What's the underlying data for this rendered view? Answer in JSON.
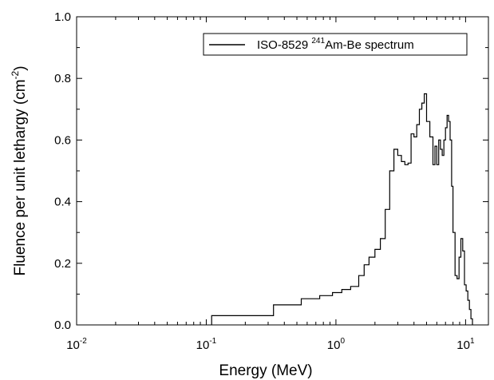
{
  "chart_data": {
    "type": "line",
    "xscale": "log",
    "xlim": [
      0.01,
      15
    ],
    "ylim": [
      0.0,
      1.0
    ],
    "grid": false,
    "legend_position": "top-right",
    "xlabel": "Energy (MeV)",
    "ylabel": "Fluence per unit lethargy (cm",
    "ylabel_superscript": "-2",
    "ylabel_suffix": ")",
    "xticks": [
      {
        "value": 0.01,
        "base": "10",
        "exp": "-2"
      },
      {
        "value": 0.1,
        "base": "10",
        "exp": "-1"
      },
      {
        "value": 1,
        "base": "10",
        "exp": "0"
      },
      {
        "value": 10,
        "base": "10",
        "exp": "1"
      }
    ],
    "yticks": [
      "0.0",
      "0.2",
      "0.4",
      "0.6",
      "0.8",
      "1.0"
    ],
    "legend": {
      "prefix": "ISO-8529 ",
      "superscript": "241",
      "suffix": "Am-Be spectrum"
    },
    "series": [
      {
        "name": "ISO-8529 241Am-Be spectrum",
        "color": "#000000",
        "step": true,
        "x": [
          0.11,
          0.33,
          0.54,
          0.75,
          0.94,
          1.11,
          1.3,
          1.5,
          1.65,
          1.8,
          2.0,
          2.2,
          2.4,
          2.6,
          2.8,
          3.0,
          3.2,
          3.4,
          3.6,
          3.8,
          4.0,
          4.2,
          4.4,
          4.6,
          4.8,
          5.0,
          5.3,
          5.6,
          5.8,
          6.0,
          6.2,
          6.4,
          6.6,
          6.8,
          7.0,
          7.2,
          7.4,
          7.6,
          7.8,
          8.0,
          8.3,
          8.6,
          8.9,
          9.2,
          9.5,
          9.8,
          10.1,
          10.4,
          10.7,
          11.0,
          11.3
        ],
        "y": [
          0.03,
          0.065,
          0.085,
          0.095,
          0.105,
          0.115,
          0.125,
          0.16,
          0.195,
          0.22,
          0.245,
          0.28,
          0.375,
          0.5,
          0.57,
          0.55,
          0.53,
          0.52,
          0.525,
          0.62,
          0.61,
          0.65,
          0.7,
          0.72,
          0.75,
          0.66,
          0.61,
          0.52,
          0.58,
          0.52,
          0.6,
          0.57,
          0.55,
          0.6,
          0.64,
          0.68,
          0.66,
          0.6,
          0.45,
          0.3,
          0.16,
          0.15,
          0.22,
          0.28,
          0.24,
          0.13,
          0.11,
          0.08,
          0.05,
          0.02,
          0.0
        ]
      }
    ]
  }
}
